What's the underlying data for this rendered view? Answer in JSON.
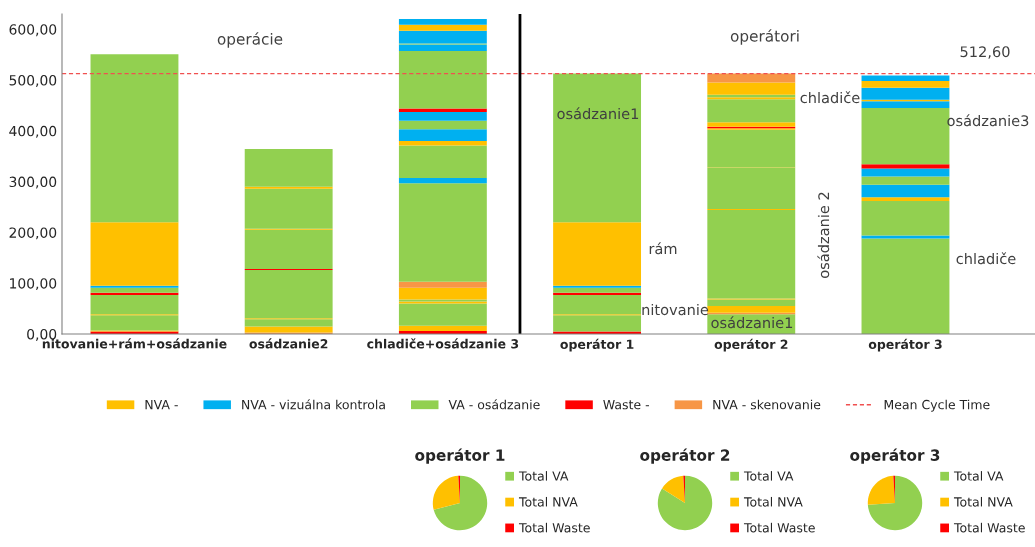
{
  "chart_data": [
    {
      "type": "bar",
      "stacked": true,
      "categories": [
        "nitovanie+rám+osádzanie",
        "osádzanie2",
        "chladiče+osádzanie 3",
        "operátor 1",
        "operátor 2",
        "operátor 3"
      ],
      "ylim": [
        0,
        630
      ],
      "yticks": [
        {
          "value": 0,
          "label": "0,00"
        },
        {
          "value": 100,
          "label": "100,00"
        },
        {
          "value": 200,
          "label": "200,00"
        },
        {
          "value": 300,
          "label": "300,00"
        },
        {
          "value": 400,
          "label": "400,00"
        },
        {
          "value": 500,
          "label": "500,00"
        },
        {
          "value": 600,
          "label": "600,00"
        }
      ],
      "grid": false,
      "legend": "bottom",
      "series": [
        {
          "values": [
            5,
            3,
            6,
            5,
            39,
            188
          ],
          "colors": [
            "#ff0000",
            "#f79646",
            "#ff0000",
            "#ff0000",
            "#92d050",
            "#92d050"
          ]
        },
        {
          "values": [
            2,
            12,
            10,
            32,
            3,
            6
          ],
          "colors": [
            "#ffc000",
            "#ffc000",
            "#ffc000",
            "#92d050",
            "#f79646",
            "#00b0f0"
          ]
        },
        {
          "values": [
            30,
            14,
            44,
            2,
            13,
            68
          ],
          "colors": [
            "#92d050",
            "#92d050",
            "#92d050",
            "#ffc000",
            "#ffc000",
            "#92d050"
          ]
        },
        {
          "values": [
            2,
            2,
            4,
            38,
            13,
            7
          ],
          "colors": [
            "#ffc000",
            "#ffc000",
            "#ffc000",
            "#92d050",
            "#92d050",
            "#ffc000"
          ]
        },
        {
          "values": [
            38,
            95,
            4,
            4,
            2,
            25
          ],
          "colors": [
            "#92d050",
            "#92d050",
            "#92d050",
            "#ff0000",
            "#ffc000",
            "#00b0f0"
          ]
        },
        {
          "values": [
            4,
            2,
            23,
            10,
            174,
            16
          ],
          "colors": [
            "#ff0000",
            "#ff0000",
            "#ffc000",
            "#92d050",
            "#92d050",
            "#92d050"
          ]
        },
        {
          "values": [
            10,
            77,
            12,
            4,
            2,
            16
          ],
          "colors": [
            "#92d050",
            "#92d050",
            "#f79646",
            "#00b0f0",
            "#ffc000",
            "#00b0f0"
          ]
        },
        {
          "values": [
            4,
            2,
            194,
            125,
            81,
            8
          ],
          "colors": [
            "#00b0f0",
            "#ffc000",
            "#92d050",
            "#ffc000",
            "#92d050",
            "#ff0000"
          ]
        },
        {
          "values": [
            125,
            79,
            10,
            293,
            1,
            111
          ],
          "colors": [
            "#ffc000",
            "#92d050",
            "#00b0f0",
            "#92d050",
            "#ffc000",
            "#92d050"
          ]
        },
        {
          "values": [
            331,
            4,
            64,
            null,
            74,
            13
          ],
          "colors": [
            "#92d050",
            "#ffc000",
            "#92d050",
            null,
            "#92d050",
            "#00b0f0"
          ]
        },
        {
          "values": [
            null,
            74,
            9,
            null,
            3,
            3
          ],
          "colors": [
            null,
            "#92d050",
            "#ffc000",
            null,
            "#ffc000",
            "#ffc000"
          ]
        },
        {
          "values": [
            null,
            null,
            23,
            null,
            3,
            24
          ],
          "colors": [
            null,
            null,
            "#00b0f0",
            null,
            "#ff0000",
            "#00b0f0"
          ]
        },
        {
          "values": [
            null,
            null,
            17,
            null,
            9,
            13
          ],
          "colors": [
            null,
            null,
            "#92d050",
            null,
            "#ffc000",
            "#ffc000"
          ]
        },
        {
          "values": [
            null,
            null,
            17,
            null,
            45,
            11
          ],
          "colors": [
            null,
            null,
            "#00b0f0",
            null,
            "#92d050",
            "#00b0f0"
          ]
        },
        {
          "values": [
            null,
            null,
            7,
            null,
            4,
            null
          ],
          "colors": [
            null,
            null,
            "#ff0000",
            null,
            "#ffc000",
            null
          ]
        },
        {
          "values": [
            null,
            null,
            113,
            null,
            5,
            null
          ],
          "colors": [
            null,
            null,
            "#92d050",
            null,
            "#92d050",
            null
          ]
        },
        {
          "values": [
            null,
            null,
            13,
            null,
            24,
            null
          ],
          "colors": [
            null,
            null,
            "#00b0f0",
            null,
            "#ffc000",
            null
          ]
        },
        {
          "values": [
            null,
            null,
            2,
            null,
            18,
            null
          ],
          "colors": [
            null,
            null,
            "#92d050",
            null,
            "#f79646",
            null
          ]
        },
        {
          "values": [
            null,
            null,
            25,
            null,
            null,
            null
          ],
          "colors": [
            null,
            null,
            "#00b0f0",
            null,
            null,
            null
          ]
        },
        {
          "values": [
            null,
            null,
            12,
            null,
            null,
            null
          ],
          "colors": [
            null,
            null,
            "#ffc000",
            null,
            null,
            null
          ]
        },
        {
          "values": [
            null,
            null,
            11,
            null,
            null,
            null
          ],
          "colors": [
            null,
            null,
            "#00b0f0",
            null,
            null,
            null
          ]
        },
        {
          "name": "NVA -",
          "color": "#ffc000",
          "values": [
            null,
            null,
            null,
            null,
            null,
            null
          ]
        },
        {
          "name": "NVA - vizuálna kontrola",
          "color": "#00b0f0",
          "values": [
            null,
            null,
            null,
            null,
            null,
            null
          ]
        },
        {
          "name": "VA - osádzanie",
          "color": "#92d050",
          "values": [
            null,
            null,
            null,
            null,
            null,
            null
          ]
        },
        {
          "name": "Waste -",
          "color": "#ff0000",
          "values": [
            null,
            null,
            null,
            null,
            null,
            null
          ]
        },
        {
          "name": "NVA - skenovanie",
          "color": "#f79646",
          "values": [
            null,
            null,
            null,
            null,
            null,
            null
          ]
        }
      ],
      "ref_lines": [
        {
          "axis": "y",
          "value": 512.6,
          "label": "Mean Cycle Time",
          "color": "#f05050",
          "line_style": "dashed"
        }
      ],
      "annotations": [
        "operácie",
        "operátori",
        "512,60",
        "osádzanie1",
        "rám",
        "nitovanie",
        "chladiče",
        "osádzanie 2",
        "osádzanie1",
        "osádzanie3",
        "chladiče"
      ]
    },
    {
      "type": "pie",
      "title": "operátor 1",
      "categories": [
        "Total VA",
        "Total NVA",
        "Total Waste"
      ],
      "values": [
        71,
        28,
        1
      ],
      "colors": [
        "#92d050",
        "#ffc000",
        "#ff0000"
      ],
      "legend": "right"
    },
    {
      "type": "pie",
      "title": "operátor 2",
      "categories": [
        "Total VA",
        "Total NVA",
        "Total Waste"
      ],
      "values": [
        84,
        15,
        1
      ],
      "colors": [
        "#92d050",
        "#ffc000",
        "#ff0000"
      ],
      "legend": "right"
    },
    {
      "type": "pie",
      "title": "operátor 3",
      "categories": [
        "Total VA",
        "Total NVA",
        "Total Waste"
      ],
      "values": [
        74,
        25,
        1
      ],
      "colors": [
        "#92d050",
        "#ffc000",
        "#ff0000"
      ],
      "legend": "right"
    }
  ]
}
